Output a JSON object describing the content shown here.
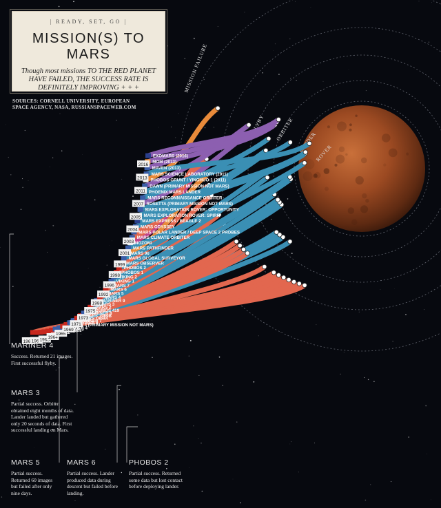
{
  "title_card": {
    "kicker": "| READY, SET, GO |",
    "title": "MISSION(S) TO MARS",
    "dek": "Though most missions TO THE RED PLANET HAVE FAILED, THE SUCCESS RATE IS DEFINITELY IMPROVING + + +"
  },
  "sources": "SOURCES: CORNELL UNIVERSITY, EUROPEAN SPACE AGENCY, NASA, RUSSIANSPACEWEB.COM",
  "ring_labels": [
    "MISSION FAILURE",
    "FLYBY",
    "ORBITER",
    "LANDER",
    "ROVER"
  ],
  "years": [
    "1960",
    "1962",
    "1963",
    "1964",
    "1965",
    "1969",
    "1971",
    "1973",
    "1975",
    "1988",
    "1992",
    "1996",
    "1998",
    "1999",
    "2001",
    "2003",
    "2004",
    "2005",
    "2007",
    "2011",
    "2013",
    "2016"
  ],
  "missions": [
    {
      "name": "MARSNIK 1",
      "outcome": "failure",
      "flag": "ussr"
    },
    {
      "name": "MARSNIK 2",
      "outcome": "failure",
      "flag": "ussr"
    },
    {
      "name": "SPUTNIK 22",
      "outcome": "failure",
      "flag": "ussr"
    },
    {
      "name": "MARS 1",
      "outcome": "failure",
      "flag": "ussr"
    },
    {
      "name": "SPUTNIK 24",
      "outcome": "failure",
      "flag": "ussr"
    },
    {
      "name": "KOSMOS 21",
      "outcome": "failure",
      "flag": "ussr"
    },
    {
      "name": "MARINER 3",
      "outcome": "failure",
      "flag": "usa"
    },
    {
      "name": "MARINER 4",
      "outcome": "flyby",
      "flag": "usa"
    },
    {
      "name": "ZOND 2",
      "outcome": "failure",
      "flag": "ussr"
    },
    {
      "name": "ZOND 3 (PRIMARY MISSION NOT MARS)",
      "outcome": "flyby",
      "flag": "ussr"
    },
    {
      "name": "MARINER 6",
      "outcome": "flyby",
      "flag": "usa"
    },
    {
      "name": "MARINER 7",
      "outcome": "flyby",
      "flag": "usa"
    },
    {
      "name": "MARS 1969A",
      "outcome": "failure",
      "flag": "ussr"
    },
    {
      "name": "MARS 1969B",
      "outcome": "failure",
      "flag": "ussr"
    },
    {
      "name": "MARINER 8",
      "outcome": "failure",
      "flag": "usa"
    },
    {
      "name": "KOSMOS 419",
      "outcome": "failure",
      "flag": "ussr"
    },
    {
      "name": "MARS 2",
      "outcome": "orbiter",
      "flag": "ussr"
    },
    {
      "name": "MARS 3",
      "outcome": "orbiter",
      "flag": "ussr"
    },
    {
      "name": "MARINER 9",
      "outcome": "orbiter",
      "flag": "usa"
    },
    {
      "name": "MARS 4",
      "outcome": "failure",
      "flag": "ussr"
    },
    {
      "name": "MARS 5",
      "outcome": "orbiter",
      "flag": "ussr"
    },
    {
      "name": "MARS 6",
      "outcome": "failure",
      "flag": "ussr"
    },
    {
      "name": "MARS 7",
      "outcome": "failure",
      "flag": "ussr"
    },
    {
      "name": "VIKING 1",
      "outcome": "lander",
      "flag": "usa"
    },
    {
      "name": "VIKING 2",
      "outcome": "lander",
      "flag": "usa"
    },
    {
      "name": "PHOBOS 1",
      "outcome": "failure",
      "flag": "ussr"
    },
    {
      "name": "PHOBOS 2",
      "outcome": "orbiter",
      "flag": "ussr"
    },
    {
      "name": "MARS OBSERVER",
      "outcome": "failure",
      "flag": "usa"
    },
    {
      "name": "MARS GLOBAL SURVEYOR",
      "outcome": "orbiter",
      "flag": "usa"
    },
    {
      "name": "MARS 96",
      "outcome": "failure",
      "flag": "russia"
    },
    {
      "name": "MARS PATHFINDER",
      "outcome": "rover",
      "flag": "usa"
    },
    {
      "name": "NOZOMI",
      "outcome": "failure",
      "flag": "japan"
    },
    {
      "name": "MARS CLIMATE ORBITER",
      "outcome": "failure",
      "flag": "usa"
    },
    {
      "name": "MARS POLAR LANDER / DEEP SPACE 2 PROBES",
      "outcome": "failure",
      "flag": "usa"
    },
    {
      "name": "MARS ODYSSEY",
      "outcome": "orbiter",
      "flag": "usa"
    },
    {
      "name": "MARS EXPRESS / BEAGLE 2",
      "outcome": "orbiter",
      "flag": "esa"
    },
    {
      "name": "MARS EXPLORATION ROVER: SPIRIT",
      "outcome": "rover",
      "flag": "usa"
    },
    {
      "name": "MARS EXPLORATION ROVER: OPPORTUNITY",
      "outcome": "rover",
      "flag": "usa"
    },
    {
      "name": "ROSETTA (PRIMARY MISSION NOT MARS)",
      "outcome": "flyby",
      "flag": "esa"
    },
    {
      "name": "MARS RECONNAISSANCE ORBITER",
      "outcome": "orbiter",
      "flag": "usa"
    },
    {
      "name": "PHOENIX MARS LANDER",
      "outcome": "lander",
      "flag": "usa"
    },
    {
      "name": "DAWN (PRIMARY MISSION NOT MARS)",
      "outcome": "flyby",
      "flag": "usa"
    },
    {
      "name": "PHOBOS-GRUNT / YINGHUO-1 (2011)",
      "outcome": "failure",
      "flag": "russia"
    },
    {
      "name": "MARS SCIENCE LABORATORY (2011)",
      "outcome": "rover",
      "flag": "usa"
    },
    {
      "name": "MAVEN (2013)",
      "outcome": "orbiter",
      "flag": "usa"
    },
    {
      "name": "MOM (2013)",
      "outcome": "orbiter",
      "flag": "india"
    },
    {
      "name": "EXOMARS (2016)",
      "outcome": "orbiter",
      "flag": "esa"
    }
  ],
  "callouts": [
    {
      "name": "MARINER 4",
      "desc": "Success. Returned 21 images. First successful flyby."
    },
    {
      "name": "MARS 3",
      "desc": "Partial success. Orbiter obtained eight months of data. Lander landed but gathered only 20 seconds of data. First successful landing on Mars."
    },
    {
      "name": "MARS 5",
      "desc": "Partial success. Returned 60 images but failed after only nine days."
    },
    {
      "name": "MARS 6",
      "desc": "Partial success. Lander produced data during descent but failed before landing."
    },
    {
      "name": "PHOBOS 2",
      "desc": "Partial success. Returned some data but lost contact before deploying lander."
    }
  ],
  "colors": {
    "failure": "#e2674f",
    "flyby": "#3a8fb4",
    "orbiter": "#3a8fb4",
    "lander": "#3a8fb4",
    "rover": "#3a8fb4",
    "purple": "#8c5fb0",
    "orange": "#e88a3a",
    "magenta": "#c0458a",
    "background": "#07090f",
    "card": "#efe9dc"
  }
}
